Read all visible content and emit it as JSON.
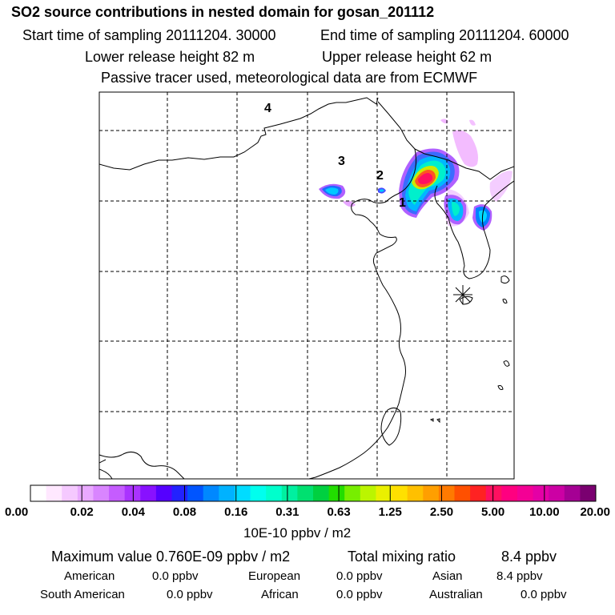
{
  "header": {
    "title": "SO2 source contributions in nested domain for gosan_201112",
    "start_time": "Start time of sampling 20111204. 30000",
    "end_time": "End time of sampling 20111204. 60000",
    "lower_release": "Lower release height   82 m",
    "upper_release": "Upper release height   62 m",
    "tracer_note": "Passive tracer used, meteorological data are from ECMWF"
  },
  "map": {
    "region_labels": [
      "1",
      "2",
      "3",
      "4"
    ]
  },
  "colorbar": {
    "colors": [
      "#ffffff",
      "#ffe8ff",
      "#f5c9ff",
      "#e9a9ff",
      "#d985ff",
      "#c55cff",
      "#aa33ff",
      "#8811ff",
      "#5500ff",
      "#2222ff",
      "#0055ff",
      "#0088ff",
      "#00b2ff",
      "#00dcff",
      "#00ffee",
      "#00ffcc",
      "#00f0a0",
      "#00e070",
      "#00d040",
      "#22dd00",
      "#77ee00",
      "#bbf500",
      "#eaf000",
      "#ffe000",
      "#ffc000",
      "#ff9f00",
      "#ff7a00",
      "#ff5000",
      "#ff2222",
      "#ff1060",
      "#ff0080",
      "#f40095",
      "#e400a6",
      "#cc00a4",
      "#a50094",
      "#7a0070"
    ],
    "ticks": [
      "0.00",
      "0.02",
      "0.04",
      "0.08",
      "0.16",
      "0.31",
      "0.63",
      "1.25",
      "2.50",
      "5.00",
      "10.00",
      "20.00"
    ],
    "unit": "10E-10 ppbv / m2"
  },
  "summary": {
    "max_value": "Maximum value  0.760E-09 ppbv / m2",
    "total_label": "Total mixing ratio",
    "total_value": "8.4 ppbv",
    "regions": [
      {
        "name": "American",
        "value": "0.0 ppbv"
      },
      {
        "name": "European",
        "value": "0.0 ppbv"
      },
      {
        "name": "Asian",
        "value": "8.4 ppbv"
      },
      {
        "name": "South American",
        "value": "0.0 ppbv"
      },
      {
        "name": "African",
        "value": "0.0 ppbv"
      },
      {
        "name": "Australian",
        "value": "0.0 ppbv"
      }
    ]
  }
}
